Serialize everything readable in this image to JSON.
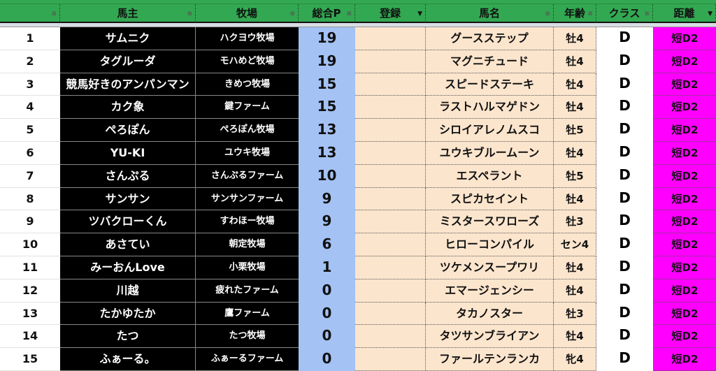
{
  "headers": [
    {
      "label": "",
      "filter": "filter-icon"
    },
    {
      "label": "馬主",
      "filter": "filter-icon"
    },
    {
      "label": "牧場",
      "filter": "filter-icon"
    },
    {
      "label": "総合P",
      "filter": "filter-icon"
    },
    {
      "label": "登録",
      "filter": "filter-active-icon"
    },
    {
      "label": "馬名",
      "filter": "filter-icon"
    },
    {
      "label": "年齢",
      "filter": "filter-icon"
    },
    {
      "label": "クラス",
      "filter": "filter-icon"
    },
    {
      "label": "距離",
      "filter": "filter-active-icon"
    }
  ],
  "colors": {
    "header": "#33a852",
    "owner_bg": "#000000",
    "points_bg": "#a4c2f4",
    "horse_bg": "#fce5cd",
    "distance_bg": "#ff00ff"
  },
  "rows": [
    {
      "rank": "1",
      "owner": "サムニク",
      "farm": "ハクヨウ牧場",
      "points": "19",
      "reg": "",
      "horse": "グースステップ",
      "age": "牡4",
      "class": "D",
      "distance": "短D2"
    },
    {
      "rank": "2",
      "owner": "タグルーダ",
      "farm": "モハめど牧場",
      "points": "19",
      "reg": "",
      "horse": "マグニチュード",
      "age": "牡4",
      "class": "D",
      "distance": "短D2"
    },
    {
      "rank": "3",
      "owner": "競馬好きのアンパンマン",
      "farm": "きめつ牧場",
      "points": "15",
      "reg": "",
      "horse": "スピードステーキ",
      "age": "牡4",
      "class": "D",
      "distance": "短D2"
    },
    {
      "rank": "4",
      "owner": "カク象",
      "farm": "鍵ファーム",
      "points": "15",
      "reg": "",
      "horse": "ラストハルマゲドン",
      "age": "牡4",
      "class": "D",
      "distance": "短D2"
    },
    {
      "rank": "5",
      "owner": "ぺろぽん",
      "farm": "ぺろぽん牧場",
      "points": "13",
      "reg": "",
      "horse": "シロイアレノムスコ",
      "age": "牡5",
      "class": "D",
      "distance": "短D2"
    },
    {
      "rank": "6",
      "owner": "YU-KI",
      "farm": "ユウキ牧場",
      "points": "13",
      "reg": "",
      "horse": "ユウキブルームーン",
      "age": "牡4",
      "class": "D",
      "distance": "短D2"
    },
    {
      "rank": "7",
      "owner": "さんぷる",
      "farm": "さんぷるファーム",
      "points": "10",
      "reg": "",
      "horse": "エスペラント",
      "age": "牡5",
      "class": "D",
      "distance": "短D2"
    },
    {
      "rank": "8",
      "owner": "サンサン",
      "farm": "サンサンファーム",
      "points": "9",
      "reg": "",
      "horse": "スピカセイント",
      "age": "牡4",
      "class": "D",
      "distance": "短D2"
    },
    {
      "rank": "9",
      "owner": "ツバクローくん",
      "farm": "すわほー牧場",
      "points": "9",
      "reg": "",
      "horse": "ミスタースワローズ",
      "age": "牡3",
      "class": "D",
      "distance": "短D2"
    },
    {
      "rank": "10",
      "owner": "あさてい",
      "farm": "朝定牧場",
      "points": "6",
      "reg": "",
      "horse": "ヒローコンパイル",
      "age": "セン4",
      "class": "D",
      "distance": "短D2"
    },
    {
      "rank": "11",
      "owner": "みーおんLove",
      "farm": "小栗牧場",
      "points": "1",
      "reg": "",
      "horse": "ツケメンスープワリ",
      "age": "牡4",
      "class": "D",
      "distance": "短D2"
    },
    {
      "rank": "12",
      "owner": "川越",
      "farm": "疲れたファーム",
      "points": "0",
      "reg": "",
      "horse": "エマージェンシー",
      "age": "牡4",
      "class": "D",
      "distance": "短D2"
    },
    {
      "rank": "13",
      "owner": "たかゆたか",
      "farm": "鷹ファーム",
      "points": "0",
      "reg": "",
      "horse": "タカノスター",
      "age": "牡3",
      "class": "D",
      "distance": "短D2"
    },
    {
      "rank": "14",
      "owner": "たつ",
      "farm": "たつ牧場",
      "points": "0",
      "reg": "",
      "horse": "タツサンブライアン",
      "age": "牡4",
      "class": "D",
      "distance": "短D2"
    },
    {
      "rank": "15",
      "owner": "ふぁーる。",
      "farm": "ふぁーるファーム",
      "points": "0",
      "reg": "",
      "horse": "ファールテンランカ",
      "age": "牝4",
      "class": "D",
      "distance": "短D2"
    }
  ]
}
